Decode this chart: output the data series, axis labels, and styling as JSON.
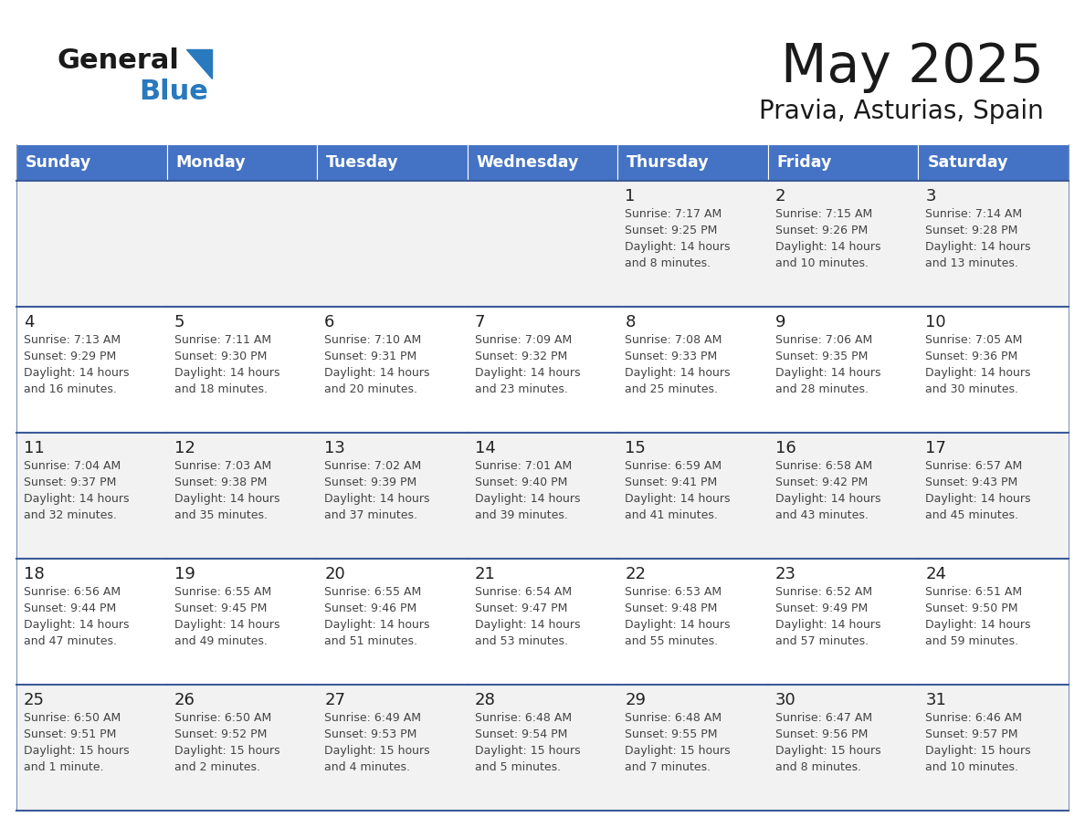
{
  "title": "May 2025",
  "subtitle": "Pravia, Asturias, Spain",
  "header_bg": "#4472C4",
  "header_text": "#FFFFFF",
  "row_bg_odd": "#F2F2F2",
  "row_bg_even": "#FFFFFF",
  "cell_border_color": "#3A5A9A",
  "title_color": "#1a1a1a",
  "subtitle_color": "#1a1a1a",
  "day_num_color": "#222222",
  "cell_text_color": "#444444",
  "logo_general_color": "#1a1a1a",
  "logo_blue_color": "#2979BE",
  "day_names": [
    "Sunday",
    "Monday",
    "Tuesday",
    "Wednesday",
    "Thursday",
    "Friday",
    "Saturday"
  ],
  "calendar": [
    [
      {
        "day": "",
        "lines": []
      },
      {
        "day": "",
        "lines": []
      },
      {
        "day": "",
        "lines": []
      },
      {
        "day": "",
        "lines": []
      },
      {
        "day": "1",
        "lines": [
          "Sunrise: 7:17 AM",
          "Sunset: 9:25 PM",
          "Daylight: 14 hours",
          "and 8 minutes."
        ]
      },
      {
        "day": "2",
        "lines": [
          "Sunrise: 7:15 AM",
          "Sunset: 9:26 PM",
          "Daylight: 14 hours",
          "and 10 minutes."
        ]
      },
      {
        "day": "3",
        "lines": [
          "Sunrise: 7:14 AM",
          "Sunset: 9:28 PM",
          "Daylight: 14 hours",
          "and 13 minutes."
        ]
      }
    ],
    [
      {
        "day": "4",
        "lines": [
          "Sunrise: 7:13 AM",
          "Sunset: 9:29 PM",
          "Daylight: 14 hours",
          "and 16 minutes."
        ]
      },
      {
        "day": "5",
        "lines": [
          "Sunrise: 7:11 AM",
          "Sunset: 9:30 PM",
          "Daylight: 14 hours",
          "and 18 minutes."
        ]
      },
      {
        "day": "6",
        "lines": [
          "Sunrise: 7:10 AM",
          "Sunset: 9:31 PM",
          "Daylight: 14 hours",
          "and 20 minutes."
        ]
      },
      {
        "day": "7",
        "lines": [
          "Sunrise: 7:09 AM",
          "Sunset: 9:32 PM",
          "Daylight: 14 hours",
          "and 23 minutes."
        ]
      },
      {
        "day": "8",
        "lines": [
          "Sunrise: 7:08 AM",
          "Sunset: 9:33 PM",
          "Daylight: 14 hours",
          "and 25 minutes."
        ]
      },
      {
        "day": "9",
        "lines": [
          "Sunrise: 7:06 AM",
          "Sunset: 9:35 PM",
          "Daylight: 14 hours",
          "and 28 minutes."
        ]
      },
      {
        "day": "10",
        "lines": [
          "Sunrise: 7:05 AM",
          "Sunset: 9:36 PM",
          "Daylight: 14 hours",
          "and 30 minutes."
        ]
      }
    ],
    [
      {
        "day": "11",
        "lines": [
          "Sunrise: 7:04 AM",
          "Sunset: 9:37 PM",
          "Daylight: 14 hours",
          "and 32 minutes."
        ]
      },
      {
        "day": "12",
        "lines": [
          "Sunrise: 7:03 AM",
          "Sunset: 9:38 PM",
          "Daylight: 14 hours",
          "and 35 minutes."
        ]
      },
      {
        "day": "13",
        "lines": [
          "Sunrise: 7:02 AM",
          "Sunset: 9:39 PM",
          "Daylight: 14 hours",
          "and 37 minutes."
        ]
      },
      {
        "day": "14",
        "lines": [
          "Sunrise: 7:01 AM",
          "Sunset: 9:40 PM",
          "Daylight: 14 hours",
          "and 39 minutes."
        ]
      },
      {
        "day": "15",
        "lines": [
          "Sunrise: 6:59 AM",
          "Sunset: 9:41 PM",
          "Daylight: 14 hours",
          "and 41 minutes."
        ]
      },
      {
        "day": "16",
        "lines": [
          "Sunrise: 6:58 AM",
          "Sunset: 9:42 PM",
          "Daylight: 14 hours",
          "and 43 minutes."
        ]
      },
      {
        "day": "17",
        "lines": [
          "Sunrise: 6:57 AM",
          "Sunset: 9:43 PM",
          "Daylight: 14 hours",
          "and 45 minutes."
        ]
      }
    ],
    [
      {
        "day": "18",
        "lines": [
          "Sunrise: 6:56 AM",
          "Sunset: 9:44 PM",
          "Daylight: 14 hours",
          "and 47 minutes."
        ]
      },
      {
        "day": "19",
        "lines": [
          "Sunrise: 6:55 AM",
          "Sunset: 9:45 PM",
          "Daylight: 14 hours",
          "and 49 minutes."
        ]
      },
      {
        "day": "20",
        "lines": [
          "Sunrise: 6:55 AM",
          "Sunset: 9:46 PM",
          "Daylight: 14 hours",
          "and 51 minutes."
        ]
      },
      {
        "day": "21",
        "lines": [
          "Sunrise: 6:54 AM",
          "Sunset: 9:47 PM",
          "Daylight: 14 hours",
          "and 53 minutes."
        ]
      },
      {
        "day": "22",
        "lines": [
          "Sunrise: 6:53 AM",
          "Sunset: 9:48 PM",
          "Daylight: 14 hours",
          "and 55 minutes."
        ]
      },
      {
        "day": "23",
        "lines": [
          "Sunrise: 6:52 AM",
          "Sunset: 9:49 PM",
          "Daylight: 14 hours",
          "and 57 minutes."
        ]
      },
      {
        "day": "24",
        "lines": [
          "Sunrise: 6:51 AM",
          "Sunset: 9:50 PM",
          "Daylight: 14 hours",
          "and 59 minutes."
        ]
      }
    ],
    [
      {
        "day": "25",
        "lines": [
          "Sunrise: 6:50 AM",
          "Sunset: 9:51 PM",
          "Daylight: 15 hours",
          "and 1 minute."
        ]
      },
      {
        "day": "26",
        "lines": [
          "Sunrise: 6:50 AM",
          "Sunset: 9:52 PM",
          "Daylight: 15 hours",
          "and 2 minutes."
        ]
      },
      {
        "day": "27",
        "lines": [
          "Sunrise: 6:49 AM",
          "Sunset: 9:53 PM",
          "Daylight: 15 hours",
          "and 4 minutes."
        ]
      },
      {
        "day": "28",
        "lines": [
          "Sunrise: 6:48 AM",
          "Sunset: 9:54 PM",
          "Daylight: 15 hours",
          "and 5 minutes."
        ]
      },
      {
        "day": "29",
        "lines": [
          "Sunrise: 6:48 AM",
          "Sunset: 9:55 PM",
          "Daylight: 15 hours",
          "and 7 minutes."
        ]
      },
      {
        "day": "30",
        "lines": [
          "Sunrise: 6:47 AM",
          "Sunset: 9:56 PM",
          "Daylight: 15 hours",
          "and 8 minutes."
        ]
      },
      {
        "day": "31",
        "lines": [
          "Sunrise: 6:46 AM",
          "Sunset: 9:57 PM",
          "Daylight: 15 hours",
          "and 10 minutes."
        ]
      }
    ]
  ]
}
